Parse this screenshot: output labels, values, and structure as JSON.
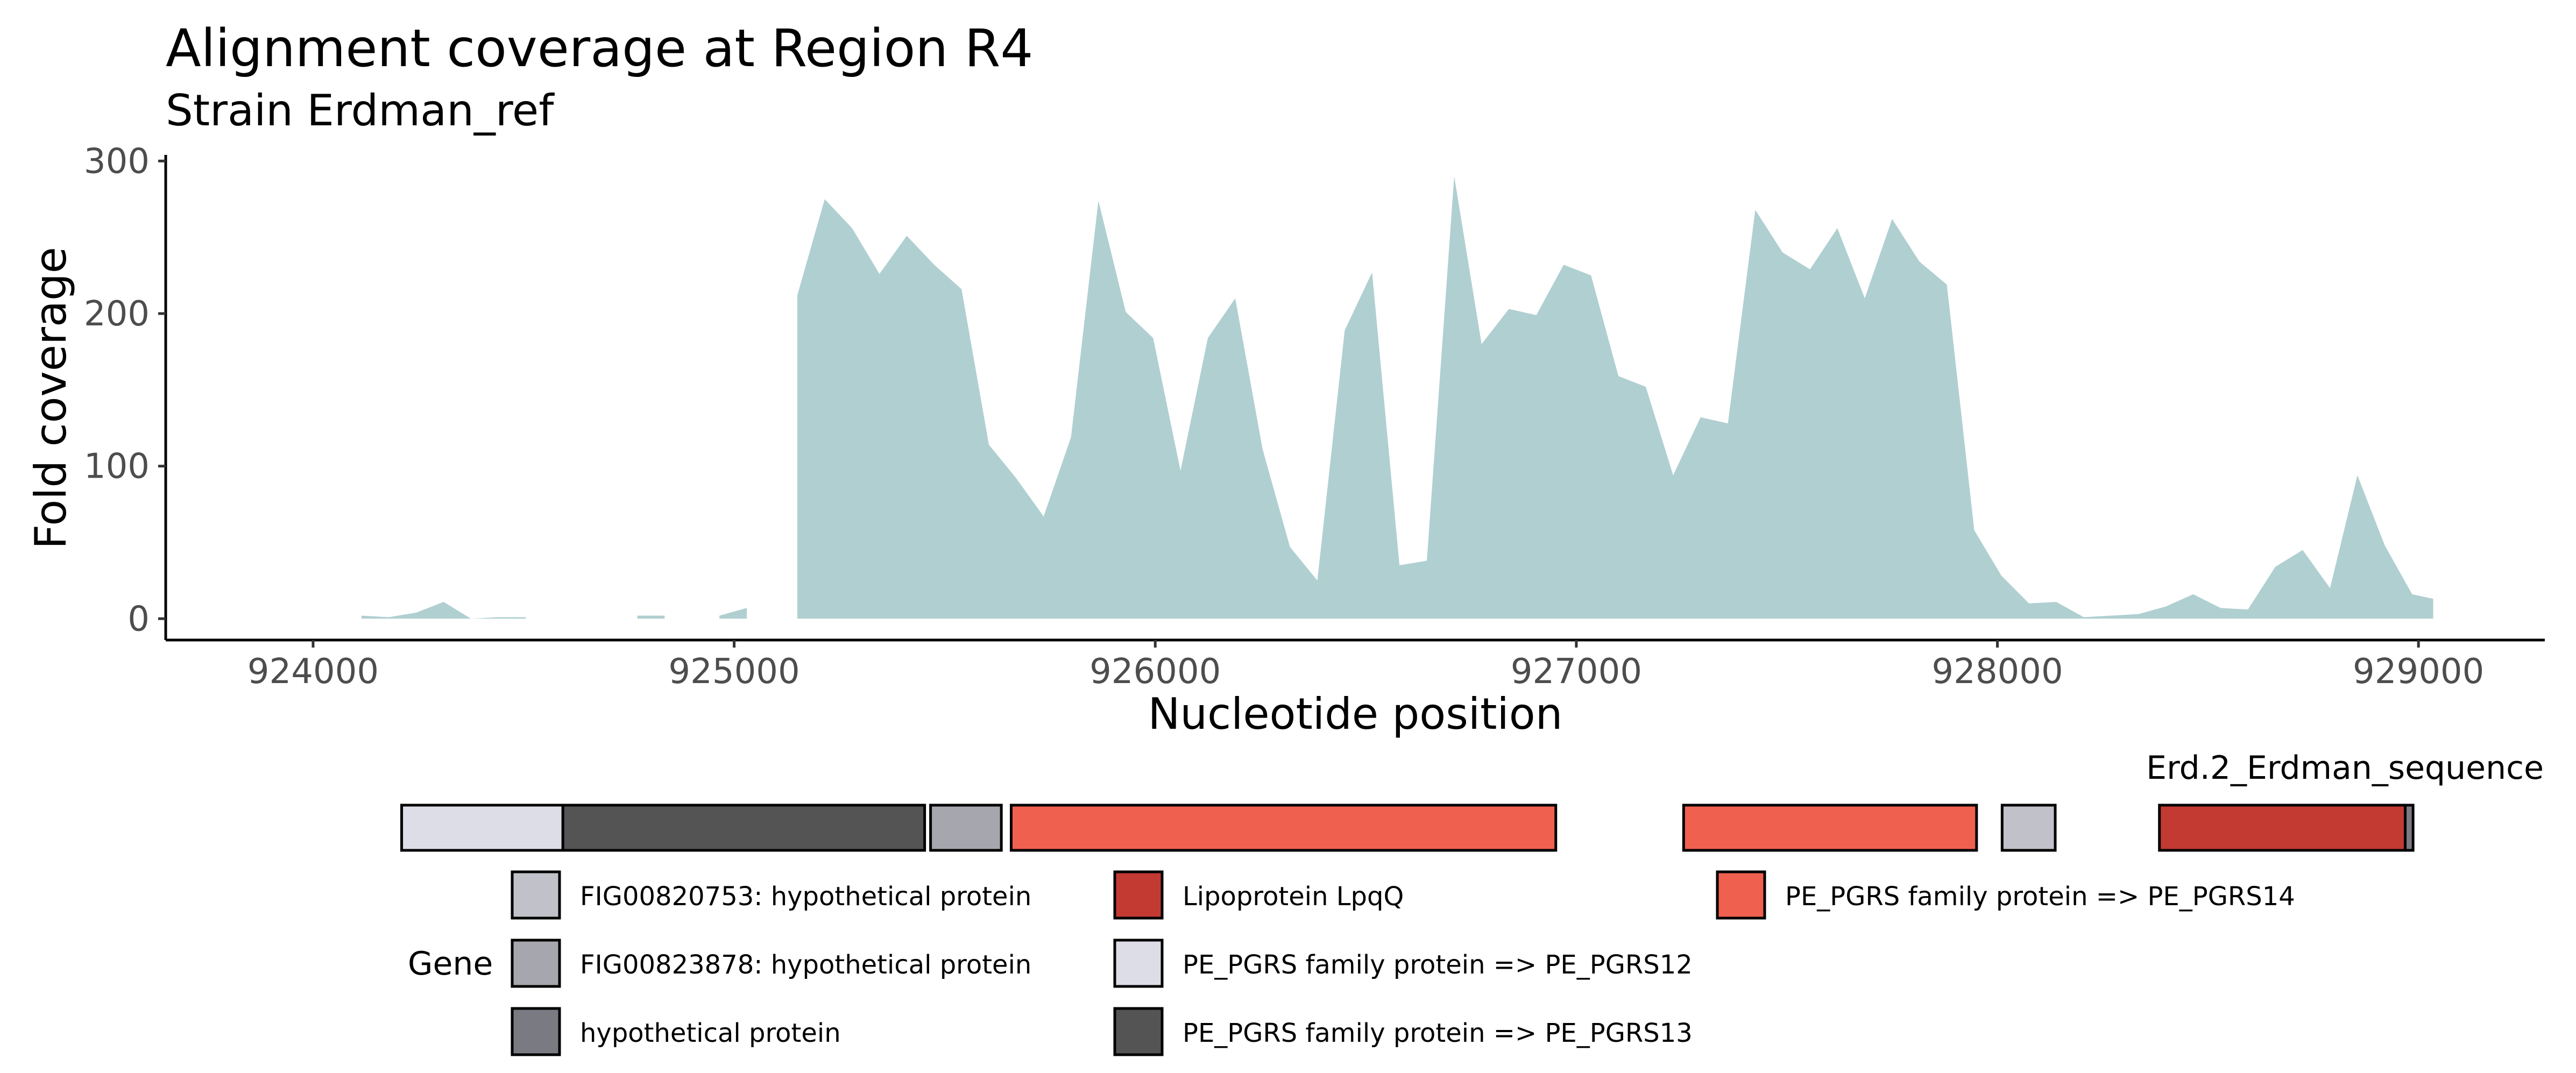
{
  "chart_data": {
    "type": "area",
    "title": "Alignment coverage at Region R4",
    "subtitle": "Strain Erdman_ref",
    "xlabel": "Nucleotide position",
    "ylabel": "Fold coverage",
    "xlim": [
      923650,
      929300
    ],
    "ylim": [
      -14,
      304
    ],
    "xticks": [
      924000,
      925000,
      926000,
      927000,
      928000,
      929000
    ],
    "xtick_labels": [
      "924000",
      "925000",
      "926000",
      "927000",
      "928000",
      "929000"
    ],
    "yticks": [
      0,
      100,
      200,
      300
    ],
    "ytick_labels": [
      "0",
      "100",
      "200",
      "300"
    ],
    "grid": false,
    "area_color": "#b0cfd1",
    "segments": [
      {
        "x": [
          924115,
          924180,
          924245,
          924310,
          924375
        ],
        "y": [
          2,
          1,
          4,
          11,
          0
        ]
      },
      {
        "x": [
          924375,
          924440,
          924505
        ],
        "y": [
          0,
          1,
          1
        ]
      },
      {
        "x": [
          924770,
          924835
        ],
        "y": [
          2,
          2
        ]
      },
      {
        "x": [
          924965,
          925030
        ],
        "y": [
          2,
          7
        ]
      },
      {
        "x": [
          925150,
          925215,
          925280,
          925345,
          925410,
          925475,
          925540,
          925605,
          925670,
          925735,
          925800,
          925865,
          925930,
          925995,
          926060,
          926125,
          926190,
          926255,
          926320,
          926385,
          926450,
          926515,
          926580,
          926645,
          926710,
          926775,
          926840,
          926905,
          926970,
          927035,
          927100,
          927165,
          927230,
          927295,
          927360,
          927425,
          927490,
          927555,
          927620,
          927685,
          927750,
          927815,
          927880,
          927945,
          928010,
          928075,
          928140,
          928205,
          928270,
          928335,
          928400,
          928465,
          928530,
          928595,
          928660,
          928725,
          928790,
          928855,
          928920,
          928985,
          929035
        ],
        "y": [
          212,
          275,
          256,
          226,
          251,
          232,
          216,
          114,
          92,
          67,
          119,
          274,
          201,
          184,
          97,
          184,
          210,
          111,
          47,
          25,
          189,
          227,
          35,
          38,
          290,
          180,
          203,
          199,
          232,
          225,
          159,
          152,
          94,
          132,
          128,
          268,
          240,
          229,
          256,
          210,
          262,
          234,
          219,
          58,
          28,
          10,
          11,
          1,
          2,
          3,
          8,
          16,
          7,
          6,
          34,
          45,
          20,
          94,
          48,
          16,
          13
        ]
      }
    ],
    "gene_track": {
      "label": "Erd.2_Erdman_sequence",
      "genes": [
        {
          "start": 924250,
          "end": 924660,
          "name": "PE_PGRS family protein => PE_PGRS12",
          "color": "#dddde8"
        },
        {
          "start": 924660,
          "end": 925580,
          "name": "PE_PGRS family protein => PE_PGRS13",
          "color": "#545454"
        },
        {
          "start": 925595,
          "end": 925775,
          "name": "FIG00823878: hypothetical protein",
          "color": "#a6a6ae"
        },
        {
          "start": 925800,
          "end": 927185,
          "name": "PE_PGRS family protein => PE_PGRS14",
          "color": "#f0604f"
        },
        {
          "start": 927510,
          "end": 928255,
          "name": "PE_PGRS family protein => PE_PGRS14",
          "color": "#f0604f"
        },
        {
          "start": 928320,
          "end": 928455,
          "name": "FIG00820753: hypothetical protein",
          "color": "#c1c1c9"
        },
        {
          "start": 928720,
          "end": 929345,
          "name": "Lipoprotein LpqQ",
          "color": "#c23a32"
        },
        {
          "start": 929345,
          "end": 929365,
          "name": "hypothetical protein",
          "color": "#7a7a82"
        }
      ]
    },
    "legend": {
      "title": "Gene",
      "position": "bottom",
      "entries": [
        {
          "label": "FIG00820753: hypothetical protein",
          "color": "#c1c1c9"
        },
        {
          "label": "FIG00823878: hypothetical protein",
          "color": "#a6a6ae"
        },
        {
          "label": "hypothetical protein",
          "color": "#7a7a82"
        },
        {
          "label": "Lipoprotein LpqQ",
          "color": "#c23a32"
        },
        {
          "label": "PE_PGRS family protein => PE_PGRS12",
          "color": "#dddde8"
        },
        {
          "label": "PE_PGRS family protein => PE_PGRS13",
          "color": "#545454"
        },
        {
          "label": "PE_PGRS family protein => PE_PGRS14",
          "color": "#f0604f"
        }
      ]
    }
  }
}
